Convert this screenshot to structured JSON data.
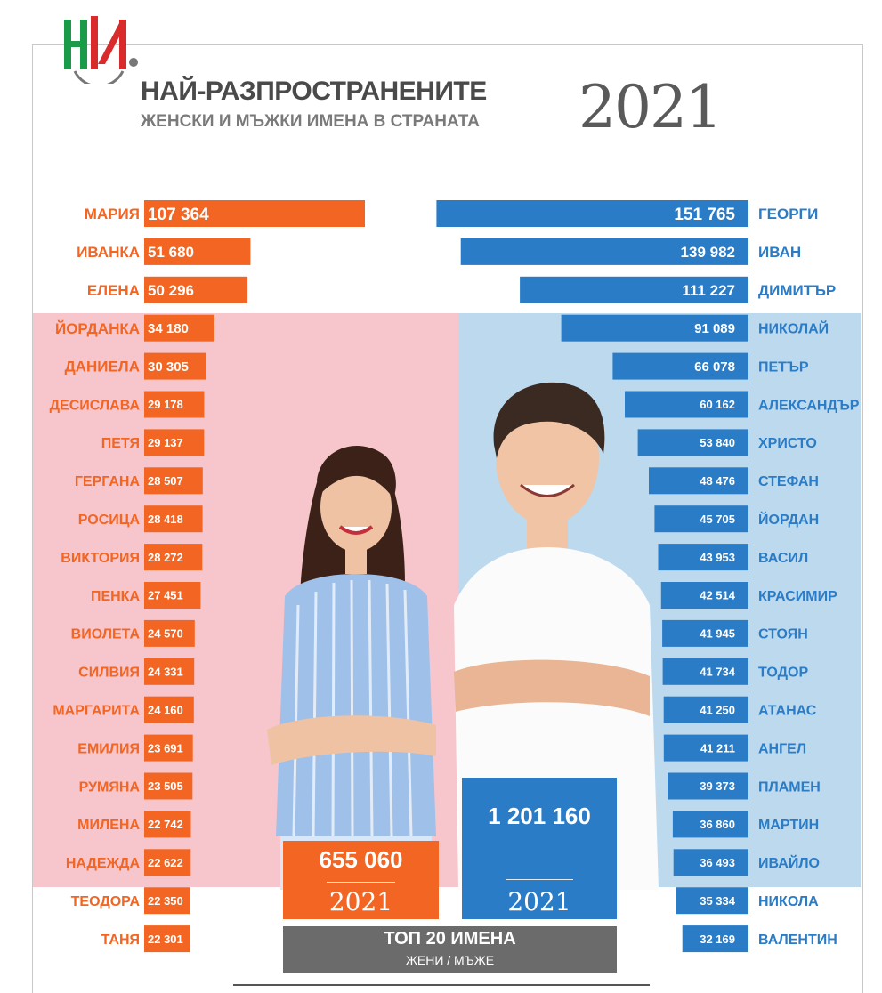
{
  "header": {
    "title_line1": "НАЙ-РАЗПРОСТРАНЕНИТЕ",
    "title_line2": "ЖЕНСКИ И МЪЖКИ ИМЕНА В СТРАНАТА",
    "year": "2021"
  },
  "colors": {
    "female": "#f26522",
    "male": "#2a7cc7",
    "female_bg": "#f6c6cc",
    "male_bg": "#bcd9ee",
    "footer_box": "#6b6b6b"
  },
  "icons": [
    "nsi-logo-icon"
  ],
  "totals": {
    "female": {
      "value": "655 060",
      "year": "2021"
    },
    "male": {
      "value": "1 201 160",
      "year": "2021"
    }
  },
  "footer": {
    "title": "ТОП 20 ИМЕНА",
    "subtitle": "ЖЕНИ / МЪЖЕ"
  },
  "chart_data": [
    {
      "type": "bar",
      "orientation": "horizontal",
      "categories": [
        "МАРИЯ",
        "ИВАНКА",
        "ЕЛЕНА",
        "ЙОРДАНКА",
        "ДАНИЕЛА",
        "ДЕСИСЛАВА",
        "ПЕТЯ",
        "ГЕРГАНА",
        "РОСИЦА",
        "ВИКТОРИЯ",
        "ПЕНКА",
        "ВИОЛЕТА",
        "СИЛВИЯ",
        "МАРГАРИТА",
        "ЕМИЛИЯ",
        "РУМЯНА",
        "МИЛЕНА",
        "НАДЕЖДА",
        "ТЕОДОРА",
        "ТАНЯ"
      ],
      "values": [
        107364,
        51680,
        50296,
        34180,
        30305,
        29178,
        29137,
        28507,
        28418,
        28272,
        27451,
        24570,
        24331,
        24160,
        23691,
        23505,
        22742,
        22622,
        22350,
        22301
      ],
      "labels": [
        "107 364",
        "51 680",
        "50 296",
        "34 180",
        "30 305",
        "29 178",
        "29 137",
        "28 507",
        "28 418",
        "28 272",
        "27 451",
        "24 570",
        "24 331",
        "24 160",
        "23 691",
        "23 505",
        "22 742",
        "22 622",
        "22 350",
        "22 301"
      ],
      "color": "#f26522"
    },
    {
      "type": "bar",
      "orientation": "horizontal",
      "categories": [
        "ГЕОРГИ",
        "ИВАН",
        "ДИМИТЪР",
        "НИКОЛАЙ",
        "ПЕТЪР",
        "АЛЕКСАНДЪР",
        "ХРИСТО",
        "СТЕФАН",
        "ЙОРДАН",
        "ВАСИЛ",
        "КРАСИМИР",
        "СТОЯН",
        "ТОДОР",
        "АТАНАС",
        "АНГЕЛ",
        "ПЛАМЕН",
        "МАРТИН",
        "ИВАЙЛО",
        "НИКОЛА",
        "ВАЛЕНТИН"
      ],
      "values": [
        151765,
        139982,
        111227,
        91089,
        66078,
        60162,
        53840,
        48476,
        45705,
        43953,
        42514,
        41945,
        41734,
        41250,
        41211,
        39373,
        36860,
        36493,
        35334,
        32169
      ],
      "labels": [
        "151 765",
        "139 982",
        "111 227",
        "91 089",
        "66 078",
        "60 162",
        "53 840",
        "48 476",
        "45 705",
        "43 953",
        "42 514",
        "41 945",
        "41 734",
        "41 250",
        "41 211",
        "39 373",
        "36 860",
        "36 493",
        "35 334",
        "32 169"
      ],
      "color": "#2a7cc7"
    }
  ]
}
